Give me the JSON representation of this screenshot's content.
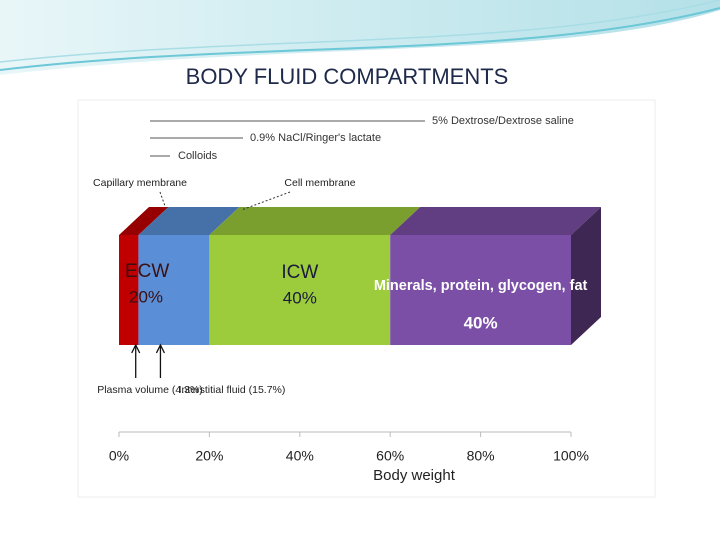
{
  "chart_data": {
    "type": "stacked-bar",
    "title": "BODY FLUID COMPARTMENTS",
    "xlabel": "Body weight",
    "xlim": [
      0,
      100
    ],
    "xticks": [
      {
        "value": 0,
        "label": "0%"
      },
      {
        "value": 20,
        "label": "20%"
      },
      {
        "value": 40,
        "label": "40%"
      },
      {
        "value": 60,
        "label": "60%"
      },
      {
        "value": 80,
        "label": "80%"
      },
      {
        "value": 100,
        "label": "100%"
      }
    ],
    "series": [
      {
        "name": "Plasma volume (4.3%)",
        "color": "#c00000",
        "values": [
          4.3
        ]
      },
      {
        "name": "Interstitial fluid (15.7%)",
        "color": "#5a8fd8",
        "values": [
          15.7
        ]
      },
      {
        "name": "ICW",
        "color": "#9ccc3c",
        "values": [
          40
        ],
        "value_labels": [
          "40%"
        ]
      },
      {
        "name": "Minerals, protein, glycogen, fat",
        "color": "#7b4fa6",
        "values": [
          40
        ],
        "value_labels": [
          "40%"
        ]
      }
    ],
    "groups": [
      {
        "name": "ECW",
        "values": [
          20
        ],
        "value_labels": [
          "20%"
        ]
      }
    ],
    "membranes": [
      "Capillary membrane",
      "Cell membrane"
    ],
    "fluid_lines": [
      "5% Dextrose/Dextrose saline",
      "0.9% NaCl/Ringer's lactate",
      "Colloids"
    ]
  }
}
